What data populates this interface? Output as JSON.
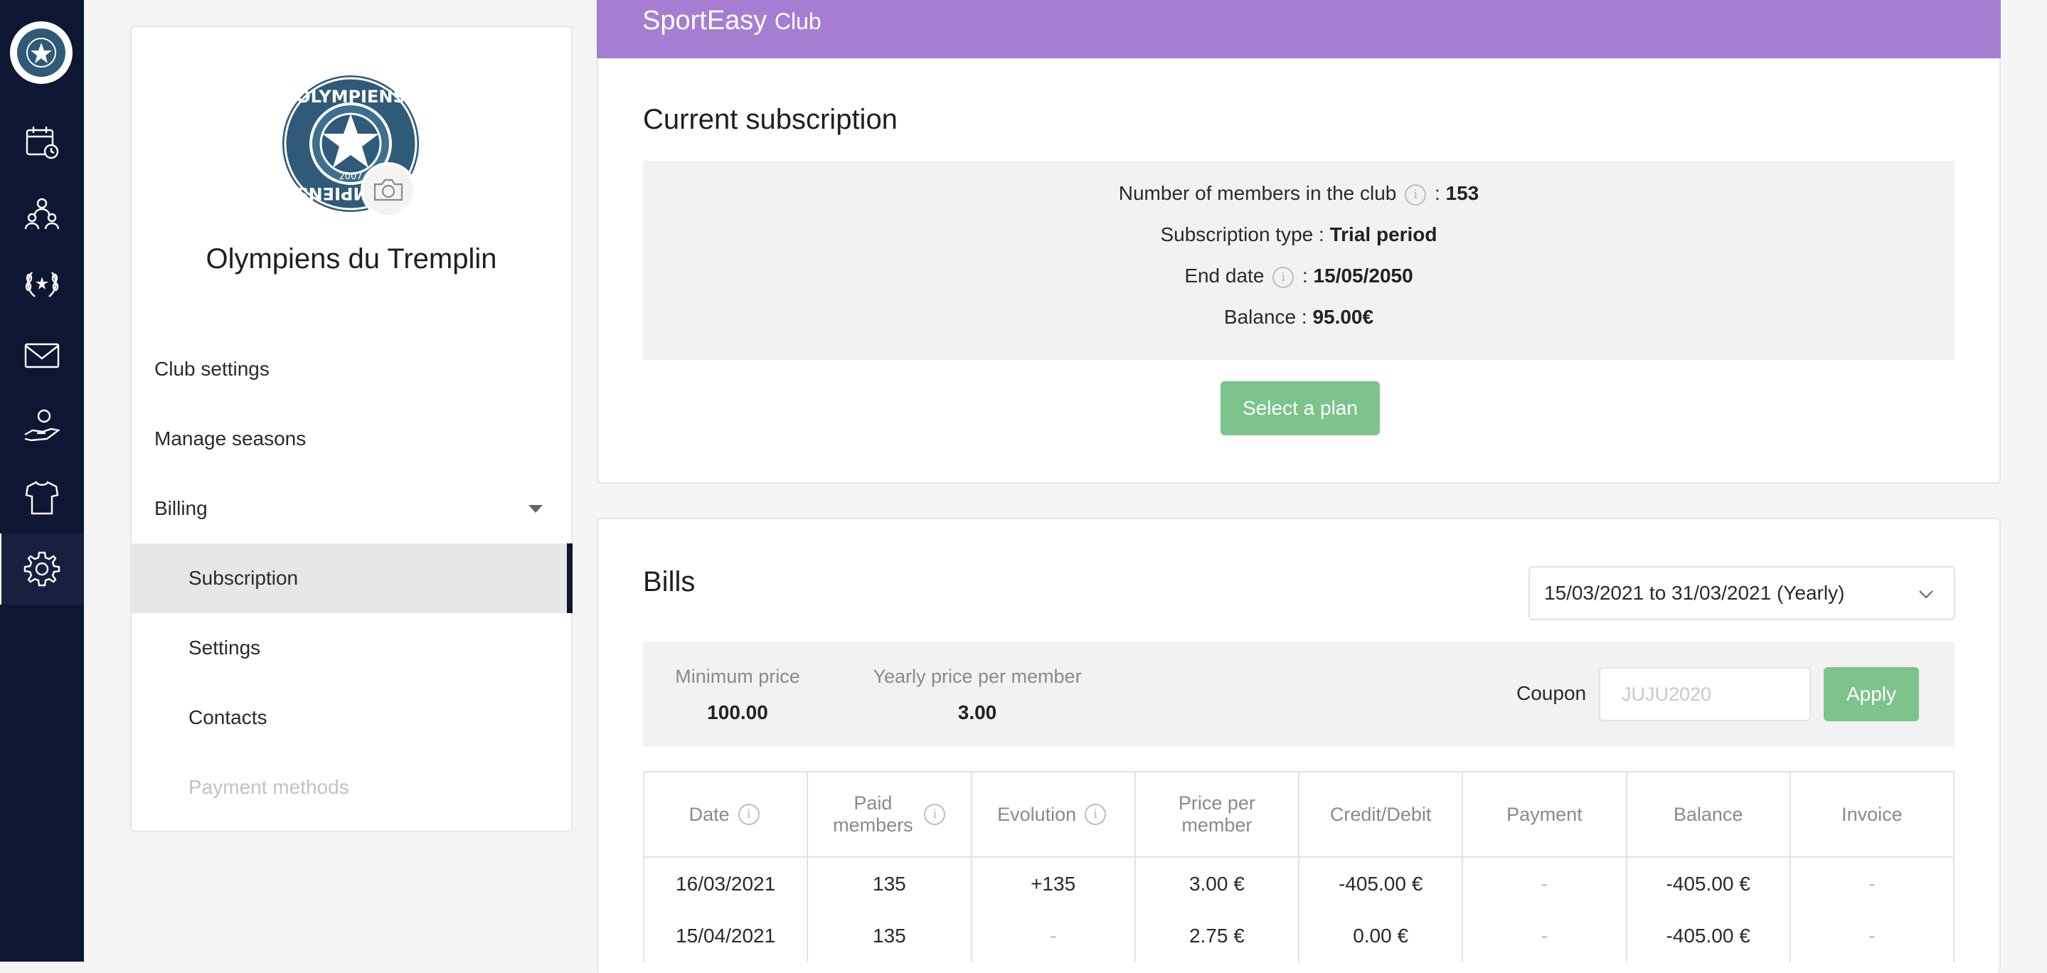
{
  "rail": {
    "items": [
      {
        "name": "calendar-icon"
      },
      {
        "name": "team-icon"
      },
      {
        "name": "laurel-icon"
      },
      {
        "name": "mail-icon"
      },
      {
        "name": "hand-member-icon"
      },
      {
        "name": "jersey-icon"
      },
      {
        "name": "gear-icon",
        "active": true
      }
    ]
  },
  "club": {
    "name": "Olympiens du Tremplin",
    "logo_text_top": "OLYMPIENS",
    "logo_text_bottom": "OLYMPIENS",
    "logo_year": "2007"
  },
  "nav": {
    "club_settings": "Club settings",
    "manage_seasons": "Manage seasons",
    "billing": "Billing",
    "subscription": "Subscription",
    "settings": "Settings",
    "contacts": "Contacts",
    "payment_methods": "Payment methods"
  },
  "banner": {
    "brand": "SportEasy",
    "tier": "Club"
  },
  "subscription": {
    "title": "Current subscription",
    "members_label": "Number of members in the club",
    "members_value": "153",
    "type_label": "Subscription type :",
    "type_value": "Trial period",
    "end_label": "End date",
    "end_value": "15/05/2050",
    "balance_label": "Balance :",
    "balance_value": "95.00€",
    "select_plan": "Select a plan",
    "colon": ":"
  },
  "bills": {
    "title": "Bills",
    "period": "15/03/2021 to 31/03/2021 (Yearly)",
    "min_price_label": "Minimum price",
    "min_price_value": "100.00",
    "yearly_price_label": "Yearly price per member",
    "yearly_price_value": "3.00",
    "coupon_label": "Coupon",
    "coupon_placeholder": "JUJU2020",
    "apply": "Apply",
    "columns": [
      "Date",
      "Paid members",
      "Evolution",
      "Price per member",
      "Credit/Debit",
      "Payment",
      "Balance",
      "Invoice"
    ],
    "rows": [
      [
        "16/03/2021",
        "135",
        "+135",
        "3.00 €",
        "-405.00 €",
        "-",
        "-405.00 €",
        "-"
      ],
      [
        "15/04/2021",
        "135",
        "-",
        "2.75 €",
        "0.00 €",
        "-",
        "-405.00 €",
        "-"
      ]
    ]
  },
  "colors": {
    "rail": "#0d1733",
    "banner": "#a57ed4",
    "green": "#7cc38c"
  }
}
